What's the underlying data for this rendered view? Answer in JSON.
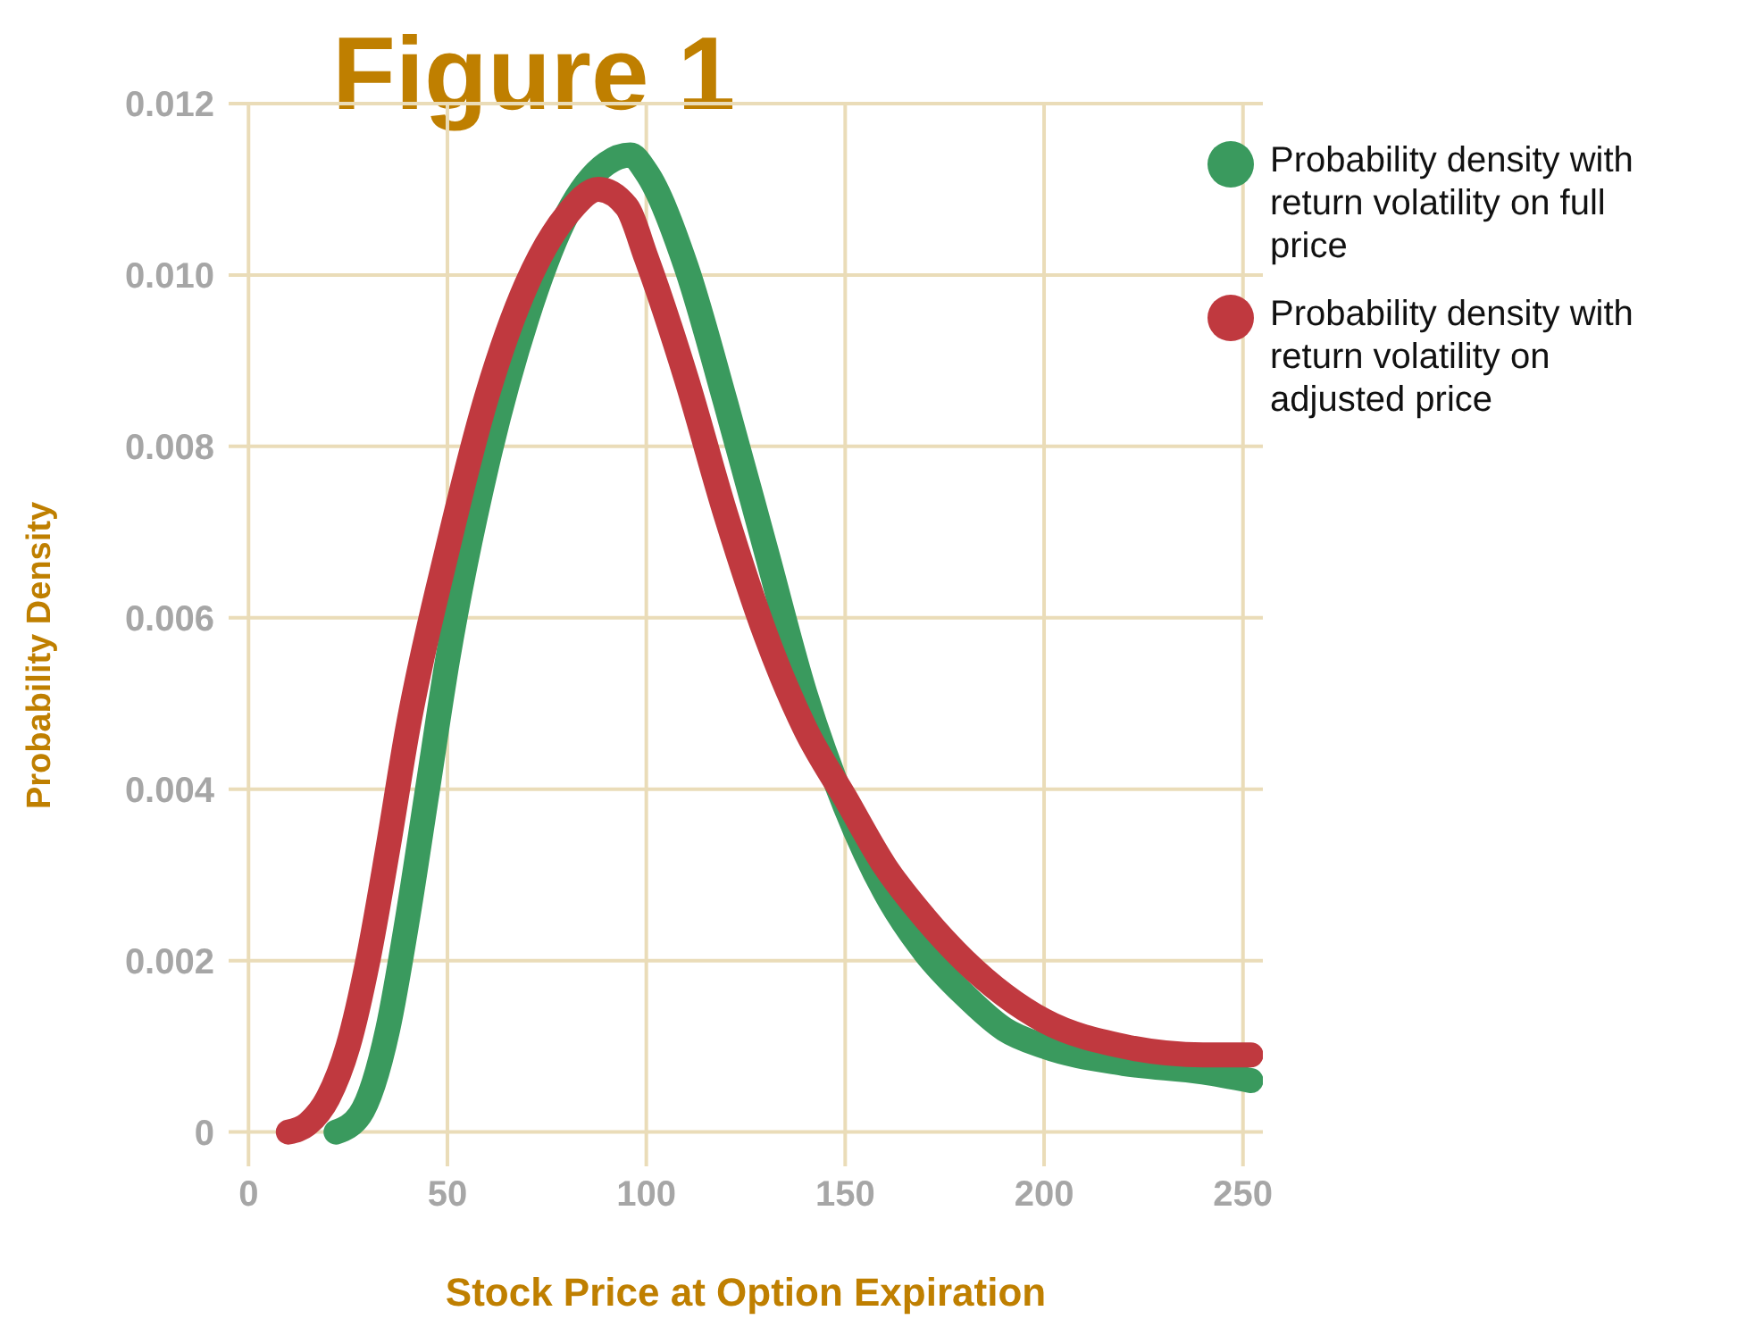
{
  "chart_data": {
    "type": "line",
    "title": "Figure 1",
    "xlabel": "Stock Price at Option Expiration",
    "ylabel": "Probability Density",
    "xlim": [
      -5,
      255
    ],
    "xticks": [
      0,
      50,
      100,
      150,
      200,
      250
    ],
    "ylim": [
      -0.0004,
      0.012
    ],
    "yticks": [
      0,
      0.002,
      0.004,
      0.006,
      0.008,
      {
        "value": 0.01,
        "label": "0.010"
      },
      0.012
    ],
    "grid": true,
    "legend": "top right",
    "marker": "none",
    "line_style": "solid",
    "series": [
      {
        "name": "Probability density with return volatility on full price",
        "color": "#3a9a5e",
        "x": [
          22,
          28,
          35,
          40,
          45,
          50,
          60,
          70,
          80,
          90,
          96,
          100,
          110,
          120,
          130,
          140,
          150,
          160,
          170,
          180,
          190,
          200,
          220,
          240,
          252
        ],
        "values": [
          0,
          0.0002,
          0.0012,
          0.0025,
          0.004,
          0.0055,
          0.0078,
          0.0095,
          0.0107,
          0.0113,
          0.0114,
          0.0112,
          0.0101,
          0.0085,
          0.0068,
          0.0051,
          0.0038,
          0.0028,
          0.0021,
          0.0016,
          0.0012,
          0.001,
          0.0008,
          0.0007,
          0.0006
        ]
      },
      {
        "name": "Probability density with return volatility on adjusted price",
        "color": "#c0393f",
        "x": [
          10,
          15,
          20,
          25,
          30,
          35,
          40,
          50,
          60,
          70,
          80,
          88,
          95,
          100,
          110,
          120,
          130,
          140,
          150,
          160,
          170,
          180,
          190,
          200,
          220,
          240,
          252
        ],
        "values": [
          0,
          0.0001,
          0.0004,
          0.001,
          0.002,
          0.0033,
          0.0047,
          0.0068,
          0.0086,
          0.0099,
          0.0107,
          0.011,
          0.0108,
          0.0102,
          0.0088,
          0.0072,
          0.0058,
          0.0047,
          0.0039,
          0.0031,
          0.0025,
          0.002,
          0.0016,
          0.0013,
          0.001,
          0.0009,
          0.0009
        ]
      }
    ]
  }
}
